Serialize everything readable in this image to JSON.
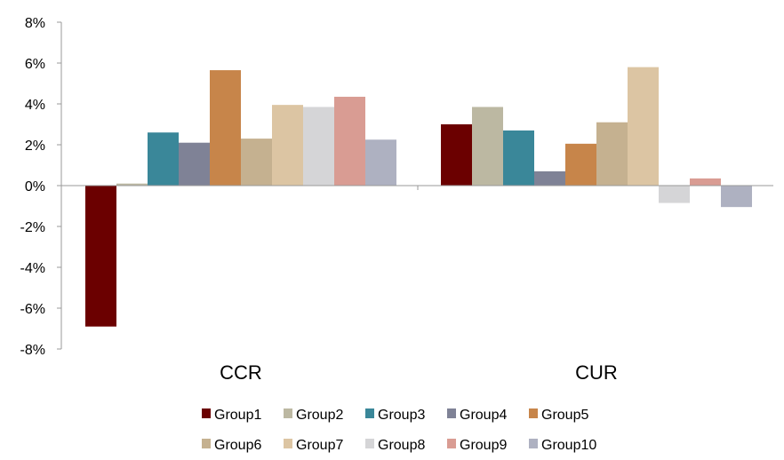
{
  "chart_data": {
    "type": "bar",
    "categories": [
      "CCR",
      "CUR"
    ],
    "series": [
      {
        "name": "Group1",
        "color": "#6b0000",
        "values": [
          -6.9,
          3.0
        ]
      },
      {
        "name": "Group2",
        "color": "#bcb8a2",
        "values": [
          0.1,
          3.85
        ]
      },
      {
        "name": "Group3",
        "color": "#3a8799",
        "values": [
          2.6,
          2.7
        ]
      },
      {
        "name": "Group4",
        "color": "#7f8296",
        "values": [
          2.1,
          0.7
        ]
      },
      {
        "name": "Group5",
        "color": "#c7854a",
        "values": [
          5.65,
          2.05
        ]
      },
      {
        "name": "Group6",
        "color": "#c5b190",
        "values": [
          2.3,
          3.1
        ]
      },
      {
        "name": "Group7",
        "color": "#dcc5a3",
        "values": [
          3.95,
          5.8
        ]
      },
      {
        "name": "Group8",
        "color": "#d5d5d7",
        "values": [
          3.85,
          -0.85
        ]
      },
      {
        "name": "Group9",
        "color": "#d99c93",
        "values": [
          4.35,
          0.35
        ]
      },
      {
        "name": "Group10",
        "color": "#aeb1c1",
        "values": [
          2.25,
          -1.05
        ]
      }
    ],
    "ylim": [
      -8,
      8
    ],
    "yticks": [
      {
        "value": 8,
        "label": "8%"
      },
      {
        "value": 6,
        "label": "6%"
      },
      {
        "value": 4,
        "label": "4%"
      },
      {
        "value": 2,
        "label": "2%"
      },
      {
        "value": 0,
        "label": "0%"
      },
      {
        "value": -2,
        "label": "-2%"
      },
      {
        "value": -4,
        "label": "-4%"
      },
      {
        "value": -6,
        "label": "-6%"
      },
      {
        "value": -8,
        "label": "-8%"
      }
    ],
    "grid": false,
    "legend_position": "bottom"
  }
}
